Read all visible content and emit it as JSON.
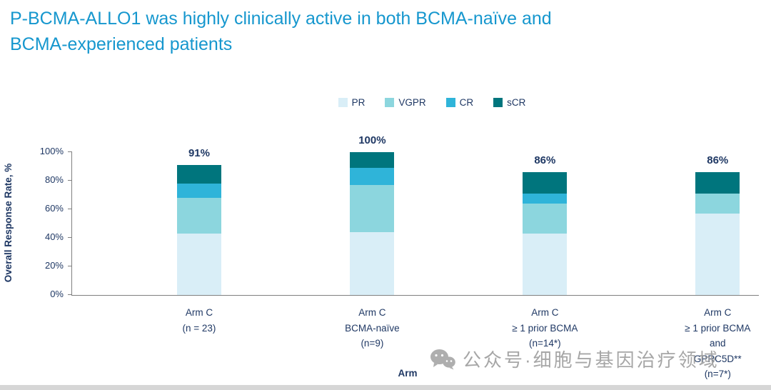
{
  "page": {
    "title_line1": "P-BCMA-ALLO1 was highly clinically active in both BCMA-naïve and",
    "title_line2": "BCMA-experienced patients"
  },
  "colors": {
    "title": "#1697CE",
    "axis_text": "#1F3864",
    "pr": "#D9EEF7",
    "vgpr": "#8CD6DE",
    "cr": "#2FB4D9",
    "scr": "#00757D"
  },
  "watermark": {
    "icon": "wechat-icon",
    "text": "公众号·细胞与基因治疗领域"
  },
  "chart_data": {
    "type": "bar",
    "stacked": true,
    "title": "",
    "xlabel": "Arm",
    "ylabel": "Overall Response Rate, %",
    "ylim": [
      0,
      100
    ],
    "yticks": [
      "0%",
      "20%",
      "40%",
      "60%",
      "80%",
      "100%"
    ],
    "grid": false,
    "legend_position": "top",
    "categories": [
      [
        "Arm C",
        "(n = 23)"
      ],
      [
        "Arm C",
        "BCMA-naïve",
        "(n=9)"
      ],
      [
        "Arm C",
        "≥ 1 prior BCMA",
        "(n=14*)"
      ],
      [
        "Arm C",
        "≥ 1 prior BCMA",
        "and",
        "GPRC5D**",
        "(n=7*)"
      ]
    ],
    "totals": [
      "91%",
      "100%",
      "86%",
      "86%"
    ],
    "series": [
      {
        "name": "PR",
        "color": "#D9EEF7",
        "values": [
          43,
          44,
          43,
          57
        ]
      },
      {
        "name": "VGPR",
        "color": "#8CD6DE",
        "values": [
          25,
          33,
          21,
          14
        ]
      },
      {
        "name": "CR",
        "color": "#2FB4D9",
        "values": [
          10,
          12,
          7,
          0
        ]
      },
      {
        "name": "sCR",
        "color": "#00757D",
        "values": [
          13,
          11,
          15,
          15
        ]
      }
    ]
  }
}
